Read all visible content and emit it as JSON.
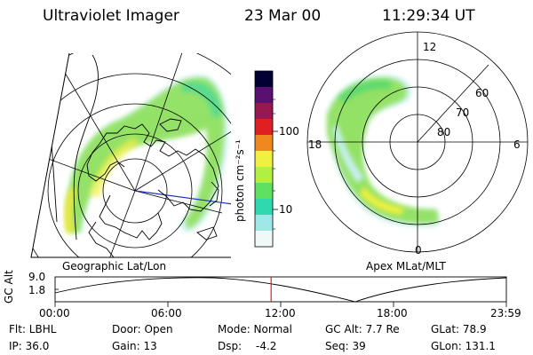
{
  "header": {
    "instrument": "Ultraviolet Imager",
    "date": "23 Mar 00",
    "time": "11:29:34 UT"
  },
  "geo_panel": {
    "label": "Geographic Lat/Lon"
  },
  "apex_panel": {
    "label": "Apex MLat/MLT",
    "mlt_labels": {
      "top": "12",
      "left": "18",
      "right": "6",
      "bottom": "0"
    },
    "lat_labels": [
      "60",
      "70",
      "80"
    ]
  },
  "colorbar": {
    "unit_label": "photon cm⁻²s⁻¹",
    "ticks": [
      "100",
      "10"
    ],
    "colors": [
      "#000033",
      "#5a1070",
      "#9a1850",
      "#e02020",
      "#f08820",
      "#f0f040",
      "#b0f040",
      "#60e060",
      "#30d8b0",
      "#a0e8e8",
      "#f0f8f8"
    ]
  },
  "timeline": {
    "axis_label": "GC Alt",
    "y_ticks": [
      "9.0",
      "1.8"
    ],
    "x_ticks": [
      "00:00",
      "06:00",
      "12:00",
      "18:00",
      "23:59"
    ],
    "current_time_hours": 11.49
  },
  "info": {
    "filter": "Flt: LBHL",
    "ip": "IP: 36.0",
    "door": "Door: Open",
    "gain": "Gain: 13",
    "mode": "Mode: Normal",
    "dsp_label": "Dsp:",
    "dsp_value": "-4.2",
    "gc_alt": "GC Alt: 7.7 Re",
    "seq": "Seq: 39",
    "glat": "GLat: 78.9",
    "glon": "GLon: 131.1"
  }
}
